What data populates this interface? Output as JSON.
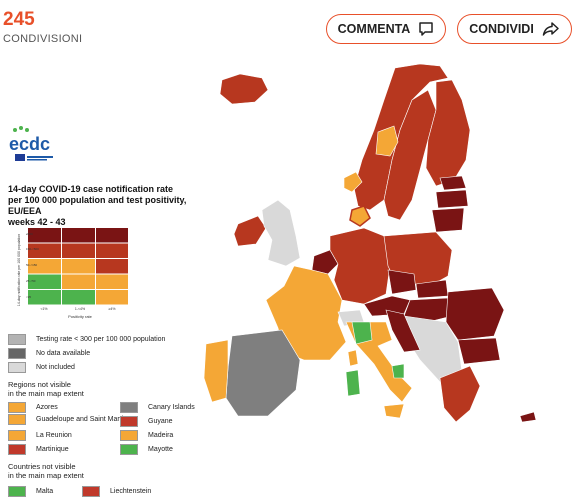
{
  "header": {
    "share_count": "245",
    "share_label": "CONDIVISIONI",
    "comment_label": "COMMENTA",
    "share_button_label": "CONDIVIDI"
  },
  "map": {
    "logo_text": "ecdc",
    "title_lines": [
      "14-day COVID-19 case notification rate",
      "per 100 000 population and test positivity, EU/EEA",
      "weeks 42 - 43"
    ],
    "matrix": {
      "y_axis_label": "14-day notification rate per 100 000 population",
      "x_axis_label": "Positivity rate",
      "x_ticks": [
        "<1%",
        "1-<4%",
        "≥4%"
      ],
      "y_ticks": [
        "≥500",
        "150-<500",
        "50-<150",
        "25-<50",
        "<25"
      ]
    },
    "legend": {
      "testing_rate": "Testing rate < 300 per 100 000 population",
      "no_data": "No data available",
      "not_included": "Not included",
      "regions_title_1": "Regions not visible",
      "regions_title_2": "in the main map extent",
      "regions": [
        {
          "name": "Azores",
          "color": "#f4a736"
        },
        {
          "name": "Canary Islands",
          "color": "#7f7f7f"
        },
        {
          "name": "Guadeloupe and Saint Martin",
          "color": "#f4a736"
        },
        {
          "name": "Guyane",
          "color": "#c0392b"
        },
        {
          "name": "La Reunion",
          "color": "#f4a736"
        },
        {
          "name": "Madeira",
          "color": "#f4a736"
        },
        {
          "name": "Martinique",
          "color": "#c0392b"
        },
        {
          "name": "Mayotte",
          "color": "#4db34d"
        }
      ],
      "countries_title_1": "Countries not visible",
      "countries_title_2": "in the main map extent",
      "countries": [
        {
          "name": "Malta",
          "color": "#4db34d"
        },
        {
          "name": "Liechtenstein",
          "color": "#c0392b"
        }
      ]
    },
    "colors": {
      "dark_red": "#7a1414",
      "red": "#b7371f",
      "orange": "#f4a736",
      "green": "#4db34d",
      "grey": "#7f7f7f",
      "light_grey": "#d9d9d9"
    }
  }
}
